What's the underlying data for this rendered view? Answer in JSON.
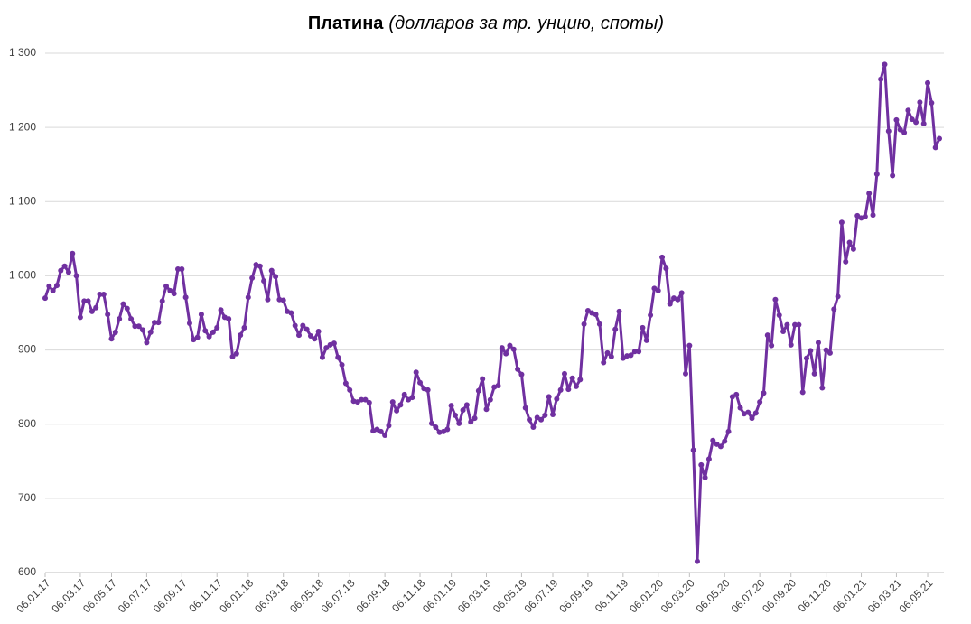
{
  "chart_data": {
    "type": "line",
    "title": "Платина",
    "subtitle": "(долларов за тр. унцию, споты)",
    "categories": [
      "06.01.17",
      null,
      null,
      null,
      null,
      null,
      null,
      null,
      null,
      "06.03.17",
      null,
      null,
      null,
      null,
      null,
      null,
      null,
      "06.05.17",
      null,
      null,
      null,
      null,
      null,
      null,
      null,
      null,
      "06.07.17",
      null,
      null,
      null,
      null,
      null,
      null,
      null,
      null,
      "06.09.17",
      null,
      null,
      null,
      null,
      null,
      null,
      null,
      null,
      "06.11.17",
      null,
      null,
      null,
      null,
      null,
      null,
      null,
      "06.01.18",
      null,
      null,
      null,
      null,
      null,
      null,
      null,
      null,
      "06.03.18",
      null,
      null,
      null,
      null,
      null,
      null,
      null,
      null,
      "06.05.18",
      null,
      null,
      null,
      null,
      null,
      null,
      null,
      "06.07.18",
      null,
      null,
      null,
      null,
      null,
      null,
      null,
      null,
      "06.09.18",
      null,
      null,
      null,
      null,
      null,
      null,
      null,
      null,
      "06.11.18",
      null,
      null,
      null,
      null,
      null,
      null,
      null,
      "06.01.19",
      null,
      null,
      null,
      null,
      null,
      null,
      null,
      null,
      "06.03.19",
      null,
      null,
      null,
      null,
      null,
      null,
      null,
      null,
      "06.05.19",
      null,
      null,
      null,
      null,
      null,
      null,
      null,
      "06.07.19",
      null,
      null,
      null,
      null,
      null,
      null,
      null,
      null,
      "06.09.19",
      null,
      null,
      null,
      null,
      null,
      null,
      null,
      null,
      "06.11.19",
      null,
      null,
      null,
      null,
      null,
      null,
      null,
      null,
      "06.01.20",
      null,
      null,
      null,
      null,
      null,
      null,
      null,
      "06.03.20",
      null,
      null,
      null,
      null,
      null,
      null,
      null,
      null,
      "06.05.20",
      null,
      null,
      null,
      null,
      null,
      null,
      null,
      null,
      "06.07.20",
      null,
      null,
      null,
      null,
      null,
      null,
      null,
      "06.09.20",
      null,
      null,
      null,
      null,
      null,
      null,
      null,
      null,
      "06.11.20",
      null,
      null,
      null,
      null,
      null,
      null,
      null,
      null,
      "06.01.21",
      null,
      null,
      null,
      null,
      null,
      null,
      null,
      null,
      "06.03.21",
      null,
      null,
      null,
      null,
      null,
      null,
      null,
      "06.05.21",
      null,
      null,
      null
    ],
    "series": [
      {
        "name": "Платина",
        "color": "#7030a0",
        "values": [
          970,
          986,
          980,
          987,
          1007,
          1013,
          1005,
          1030,
          1000,
          944,
          966,
          966,
          952,
          957,
          975,
          975,
          948,
          915,
          924,
          942,
          962,
          956,
          942,
          932,
          932,
          927,
          910,
          924,
          937,
          937,
          966,
          986,
          980,
          976,
          1009,
          1009,
          971,
          936,
          914,
          917,
          948,
          926,
          918,
          924,
          930,
          954,
          944,
          942,
          891,
          895,
          920,
          930,
          971,
          997,
          1015,
          1013,
          993,
          968,
          1007,
          999,
          968,
          967,
          952,
          950,
          933,
          920,
          933,
          928,
          919,
          915,
          925,
          890,
          903,
          907,
          909,
          890,
          880,
          855,
          846,
          831,
          830,
          833,
          833,
          829,
          791,
          793,
          790,
          785,
          798,
          830,
          818,
          826,
          840,
          833,
          836,
          870,
          856,
          848,
          846,
          801,
          796,
          789,
          790,
          793,
          825,
          812,
          801,
          819,
          826,
          803,
          808,
          845,
          861,
          820,
          833,
          850,
          852,
          903,
          895,
          906,
          901,
          874,
          867,
          822,
          806,
          796,
          809,
          806,
          812,
          837,
          813,
          834,
          846,
          868,
          847,
          862,
          851,
          860,
          935,
          953,
          950,
          948,
          935,
          883,
          896,
          891,
          928,
          952,
          889,
          892,
          893,
          898,
          898,
          930,
          913,
          947,
          983,
          980,
          1025,
          1010,
          962,
          970,
          968,
          977,
          868,
          906,
          765,
          615,
          745,
          728,
          753,
          778,
          773,
          770,
          777,
          790,
          837,
          840,
          822,
          814,
          816,
          808,
          815,
          830,
          842,
          920,
          906,
          968,
          947,
          925,
          934,
          907,
          934,
          934,
          843,
          889,
          899,
          868,
          910,
          849,
          900,
          896,
          955,
          972,
          1072,
          1019,
          1045,
          1036,
          1081,
          1078,
          1080,
          1111,
          1082,
          1137,
          1265,
          1285,
          1195,
          1135,
          1210,
          1197,
          1193,
          1223,
          1211,
          1207,
          1234,
          1205,
          1260,
          1233,
          1173,
          1185
        ]
      }
    ],
    "ylim": [
      600,
      1300
    ],
    "yticks": [
      600,
      700,
      800,
      900,
      {
        "value": 1000,
        "label": "1 000"
      },
      {
        "value": 1100,
        "label": "1 100"
      },
      {
        "value": 1200,
        "label": "1 200"
      },
      {
        "value": 1300,
        "label": "1 300"
      }
    ],
    "grid": true
  }
}
